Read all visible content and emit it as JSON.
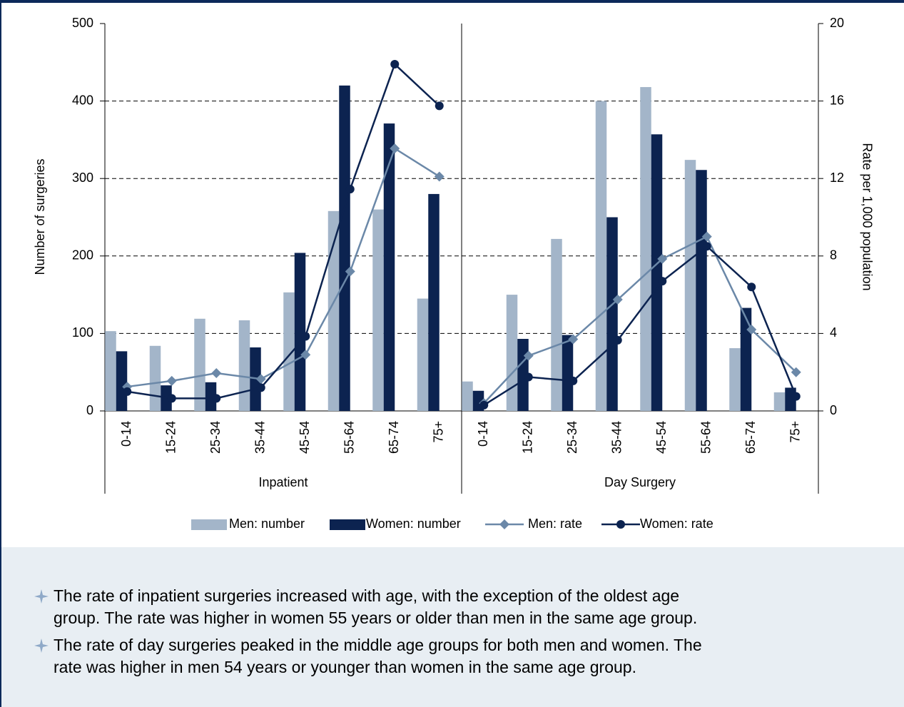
{
  "chart_data": {
    "type": "bar",
    "y_label": "Number of surgeries",
    "y2_label": "Rate per 1,000 population",
    "groups": [
      "Inpatient",
      "Day Surgery"
    ],
    "categories": [
      "0-14",
      "15-24",
      "25-34",
      "35-44",
      "45-54",
      "55-64",
      "65-74",
      "75+",
      "0-14",
      "15-24",
      "25-34",
      "35-44",
      "45-54",
      "55-64",
      "65-74",
      "75+"
    ],
    "ylim": [
      0,
      500
    ],
    "yticks": [
      0,
      100,
      200,
      300,
      400,
      500
    ],
    "y2lim": [
      0,
      20
    ],
    "y2ticks": [
      0,
      4,
      8,
      12,
      16,
      20
    ],
    "grid": true,
    "legend": "bottom",
    "series": [
      {
        "name": "Men: number",
        "type": "bar",
        "color": "#a3b5c9",
        "values": [
          103,
          84,
          119,
          117,
          153,
          258,
          260,
          145,
          38,
          150,
          222,
          400,
          418,
          324,
          81,
          24
        ]
      },
      {
        "name": "Women: number",
        "type": "bar",
        "color": "#0c2350",
        "values": [
          77,
          33,
          37,
          82,
          204,
          420,
          371,
          280,
          26,
          93,
          98,
          250,
          357,
          311,
          133,
          30
        ]
      },
      {
        "name": "Men: rate",
        "type": "line",
        "marker": "diamond",
        "axis": "y2",
        "color": "#6b88a8",
        "values": [
          1.25,
          1.55,
          1.95,
          1.65,
          2.9,
          7.2,
          13.55,
          12.1,
          0.4,
          2.85,
          3.7,
          5.75,
          7.85,
          9.0,
          4.2,
          2.0
        ]
      },
      {
        "name": "Women: rate",
        "type": "line",
        "marker": "circle",
        "axis": "y2",
        "color": "#0c2350",
        "values": [
          1.0,
          0.65,
          0.65,
          1.2,
          3.85,
          11.45,
          17.9,
          15.75,
          0.3,
          1.75,
          1.55,
          3.65,
          6.7,
          8.5,
          6.4,
          0.75
        ]
      }
    ]
  },
  "notes": {
    "bullets": [
      [
        "The rate of inpatient surgeries increased with age, with the exception of the oldest age",
        "group. The rate was higher in women 55 years or older than men in the same age group."
      ],
      [
        "The rate of day surgeries peaked in the middle age groups for both men and women. The",
        "rate was higher in men 54 years or younger than women in the same age group."
      ]
    ]
  }
}
